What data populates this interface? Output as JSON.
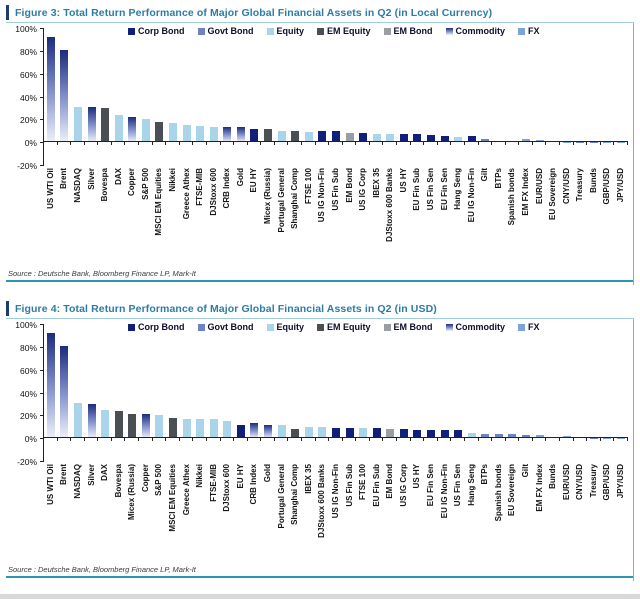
{
  "page": {
    "background": "#ffffff"
  },
  "colors": {
    "corp_bond": "#111f78",
    "govt_bond": "#6f83c3",
    "equity": "#a9d4e9",
    "em_equity": "#4a4f54",
    "em_bond": "#989ea3",
    "commodity_gradient_top": "#1c2b7d",
    "commodity_gradient_bottom": "#eef1f9",
    "fx": "#7ea3d6",
    "title_text": "#2d7ba6",
    "figure_border": "#2e93b5",
    "axis": "#222222"
  },
  "legend": [
    {
      "label": "Corp Bond",
      "type": "corp_bond"
    },
    {
      "label": "Govt Bond",
      "type": "govt_bond"
    },
    {
      "label": "Equity",
      "type": "equity"
    },
    {
      "label": "EM Equity",
      "type": "em_equity"
    },
    {
      "label": "EM Bond",
      "type": "em_bond"
    },
    {
      "label": "Commodity",
      "type": "commodity"
    },
    {
      "label": "FX",
      "type": "fx"
    }
  ],
  "y_axis": {
    "ticks": [
      "100%",
      "80%",
      "60%",
      "40%",
      "20%",
      "0%",
      "-20%"
    ],
    "max": 100,
    "min": -20
  },
  "chart_data": [
    {
      "type": "bar",
      "title": "Figure 3: Total Return Performance of Major Global Financial Assets in Q2 (in Local Currency)",
      "source": "Source : Deutsche Bank, Bloomberg Finance LP, Mark-It",
      "unit": "%",
      "ylim": [
        -20,
        100
      ],
      "grid": false,
      "legend_position": "top",
      "categories": [
        "US WTI Oil",
        "Brent",
        "NASDAQ",
        "Silver",
        "Bovespa",
        "DAX",
        "Copper",
        "S&P 500",
        "MSCI EM Equities",
        "Nikkei",
        "Greece Athex",
        "FTSE-MIB",
        "DJStoxx 600",
        "CRB Index",
        "Gold",
        "EU HY",
        "Micex (Russia)",
        "Portugal General",
        "Shanghai Comp",
        "FTSE 100",
        "US IG Non-Fin",
        "US Fin Sub",
        "EM Bond",
        "US IG Corp",
        "IBEX 35",
        "DJStoxx 600 Banks",
        "US HY",
        "EU Fin Sub",
        "US Fin Sen",
        "EU Fin Sen",
        "Hang Seng",
        "EU IG Non-Fin",
        "Gilt",
        "BTPs",
        "Spanish bonds",
        "EM FX Index",
        "EUR/USD",
        "EU Sovereign",
        "CNY/USD",
        "Treasury",
        "Bunds",
        "GBP/USD",
        "JPY/USD"
      ],
      "values": [
        92,
        81,
        31,
        31,
        30,
        24,
        22,
        20,
        18,
        17,
        15,
        14.5,
        13.5,
        13,
        13,
        11.5,
        11.5,
        10,
        10,
        9,
        9.5,
        9.5,
        8.5,
        8,
        7.5,
        7.5,
        7,
        7,
        6.5,
        5.5,
        4.5,
        5.5,
        2.5,
        1.5,
        1.5,
        2.5,
        2,
        1,
        0.3,
        0.2,
        0.2,
        0.2,
        -0.3
      ],
      "asset_class": [
        "commodity",
        "commodity",
        "equity",
        "commodity",
        "em_equity",
        "equity",
        "commodity",
        "equity",
        "em_equity",
        "equity",
        "equity",
        "equity",
        "equity",
        "commodity",
        "commodity",
        "corp_bond",
        "em_equity",
        "equity",
        "em_equity",
        "equity",
        "corp_bond",
        "corp_bond",
        "em_bond",
        "corp_bond",
        "equity",
        "equity",
        "corp_bond",
        "corp_bond",
        "corp_bond",
        "corp_bond",
        "equity",
        "corp_bond",
        "govt_bond",
        "govt_bond",
        "govt_bond",
        "fx",
        "fx",
        "govt_bond",
        "fx",
        "govt_bond",
        "govt_bond",
        "fx",
        "fx"
      ]
    },
    {
      "type": "bar",
      "title": "Figure 4: Total Return Performance of Major Global Financial Assets in Q2 (in USD)",
      "source": "Source : Deutsche Bank, Bloomberg Finance LP, Mark-It",
      "unit": "%",
      "ylim": [
        -20,
        100
      ],
      "grid": false,
      "legend_position": "top",
      "categories": [
        "US WTI Oil",
        "Brent",
        "NASDAQ",
        "Silver",
        "DAX",
        "Bovespa",
        "Micex (Russia)",
        "Copper",
        "S&P 500",
        "MSCI EM Equities",
        "Greece Athex",
        "Nikkei",
        "FTSE-MIB",
        "DJStoxx 600",
        "EU HY",
        "CRB Index",
        "Gold",
        "Portugal General",
        "Shanghai Comp",
        "IBEX 35",
        "DJStoxx 600 Banks",
        "US IG Non-Fin",
        "US Fin Sub",
        "FTSE 100",
        "EU Fin Sub",
        "EM Bond",
        "US IG Corp",
        "US HY",
        "EU Fin Sen",
        "EU IG Non-Fin",
        "US Fin Sen",
        "Hang Seng",
        "BTPs",
        "Spanish bonds",
        "EU Sovereign",
        "Gilt",
        "EM FX Index",
        "Bunds",
        "EUR/USD",
        "CNY/USD",
        "Treasury",
        "GBP/USD",
        "JPY/USD"
      ],
      "values": [
        92,
        81,
        31,
        30,
        25,
        23.5,
        21,
        21,
        20,
        17.5,
        17,
        16.5,
        16.5,
        15.5,
        11.5,
        13,
        12,
        11.5,
        8.5,
        10,
        10,
        9,
        9,
        9,
        9,
        8.5,
        8,
        7.5,
        7.5,
        7,
        7,
        4.5,
        4,
        3.5,
        3.5,
        3,
        2.5,
        1.5,
        2,
        1,
        0.5,
        0.5,
        0.3
      ],
      "asset_class": [
        "commodity",
        "commodity",
        "equity",
        "commodity",
        "equity",
        "em_equity",
        "em_equity",
        "commodity",
        "equity",
        "em_equity",
        "equity",
        "equity",
        "equity",
        "equity",
        "corp_bond",
        "commodity",
        "commodity",
        "equity",
        "em_equity",
        "equity",
        "equity",
        "corp_bond",
        "corp_bond",
        "equity",
        "corp_bond",
        "em_bond",
        "corp_bond",
        "corp_bond",
        "corp_bond",
        "corp_bond",
        "corp_bond",
        "equity",
        "govt_bond",
        "govt_bond",
        "govt_bond",
        "govt_bond",
        "fx",
        "govt_bond",
        "fx",
        "fx",
        "govt_bond",
        "fx",
        "fx"
      ]
    }
  ]
}
